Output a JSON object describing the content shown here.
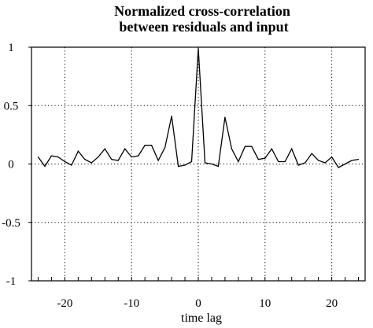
{
  "chart_data": {
    "type": "line",
    "title_line1": "Normalized cross-correlation",
    "title_line2": "between residuals and input",
    "xlabel": "time lag",
    "ylabel": "",
    "xlim": [
      -25,
      25
    ],
    "ylim": [
      -1,
      1
    ],
    "xticks": [
      "-20",
      "-10",
      "0",
      "10",
      "20"
    ],
    "yticks": [
      "1",
      "0.5",
      "0",
      "-0.5",
      "-1"
    ],
    "grid": "dotted",
    "series": [
      {
        "x": [
          -24,
          -23,
          -22,
          -21,
          -20,
          -19,
          -18,
          -17,
          -16,
          -15,
          -14,
          -13,
          -12,
          -11,
          -10,
          -9,
          -8,
          -7,
          -6,
          -5,
          -4,
          -3,
          -2,
          -1,
          0,
          1,
          2,
          3,
          4,
          5,
          6,
          7,
          8,
          9,
          10,
          11,
          12,
          13,
          14,
          15,
          16,
          17,
          18,
          19,
          20,
          21,
          22,
          23,
          24
        ],
        "values": [
          0.06,
          -0.02,
          0.07,
          0.06,
          0.02,
          -0.01,
          0.11,
          0.04,
          0.01,
          0.06,
          0.13,
          0.04,
          0.03,
          0.13,
          0.06,
          0.07,
          0.16,
          0.16,
          0.03,
          0.14,
          0.41,
          -0.02,
          -0.01,
          0.02,
          0.99,
          0.01,
          0.0,
          -0.02,
          0.4,
          0.13,
          0.02,
          0.15,
          0.15,
          0.04,
          0.05,
          0.13,
          0.02,
          0.02,
          0.13,
          -0.01,
          0.01,
          0.09,
          0.03,
          0.01,
          0.06,
          -0.03,
          0.0,
          0.03,
          0.04
        ]
      }
    ]
  }
}
